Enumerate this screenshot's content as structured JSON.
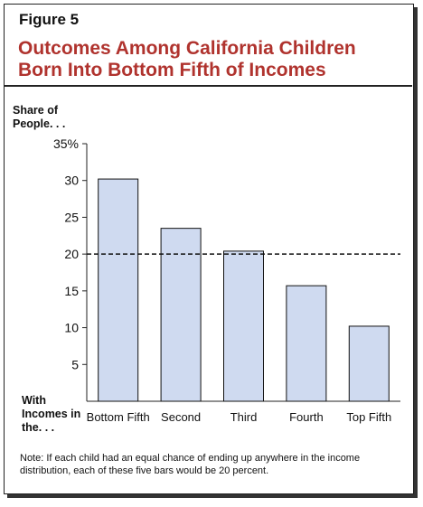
{
  "figure_label": "Figure 5",
  "title": "Outcomes Among California Children Born Into Bottom Fifth of Incomes",
  "note": "Note: If each child had an equal chance of ending up anywhere in the income distribution, each of these five bars would be 20 percent.",
  "chart_data": {
    "type": "bar",
    "ylabel": "Share of People. . .",
    "xlabel": "With Incomes in the. . .",
    "categories": [
      "Bottom Fifth",
      "Second",
      "Third",
      "Fourth",
      "Top Fifth"
    ],
    "values": [
      30.2,
      23.5,
      20.4,
      15.7,
      10.2
    ],
    "ylim": [
      0,
      35
    ],
    "yticks": [
      "5",
      "10",
      "15",
      "20",
      "25",
      "30",
      "35%"
    ],
    "reference_line": 20,
    "bar_color": "#cfdaf0",
    "grid": false
  }
}
